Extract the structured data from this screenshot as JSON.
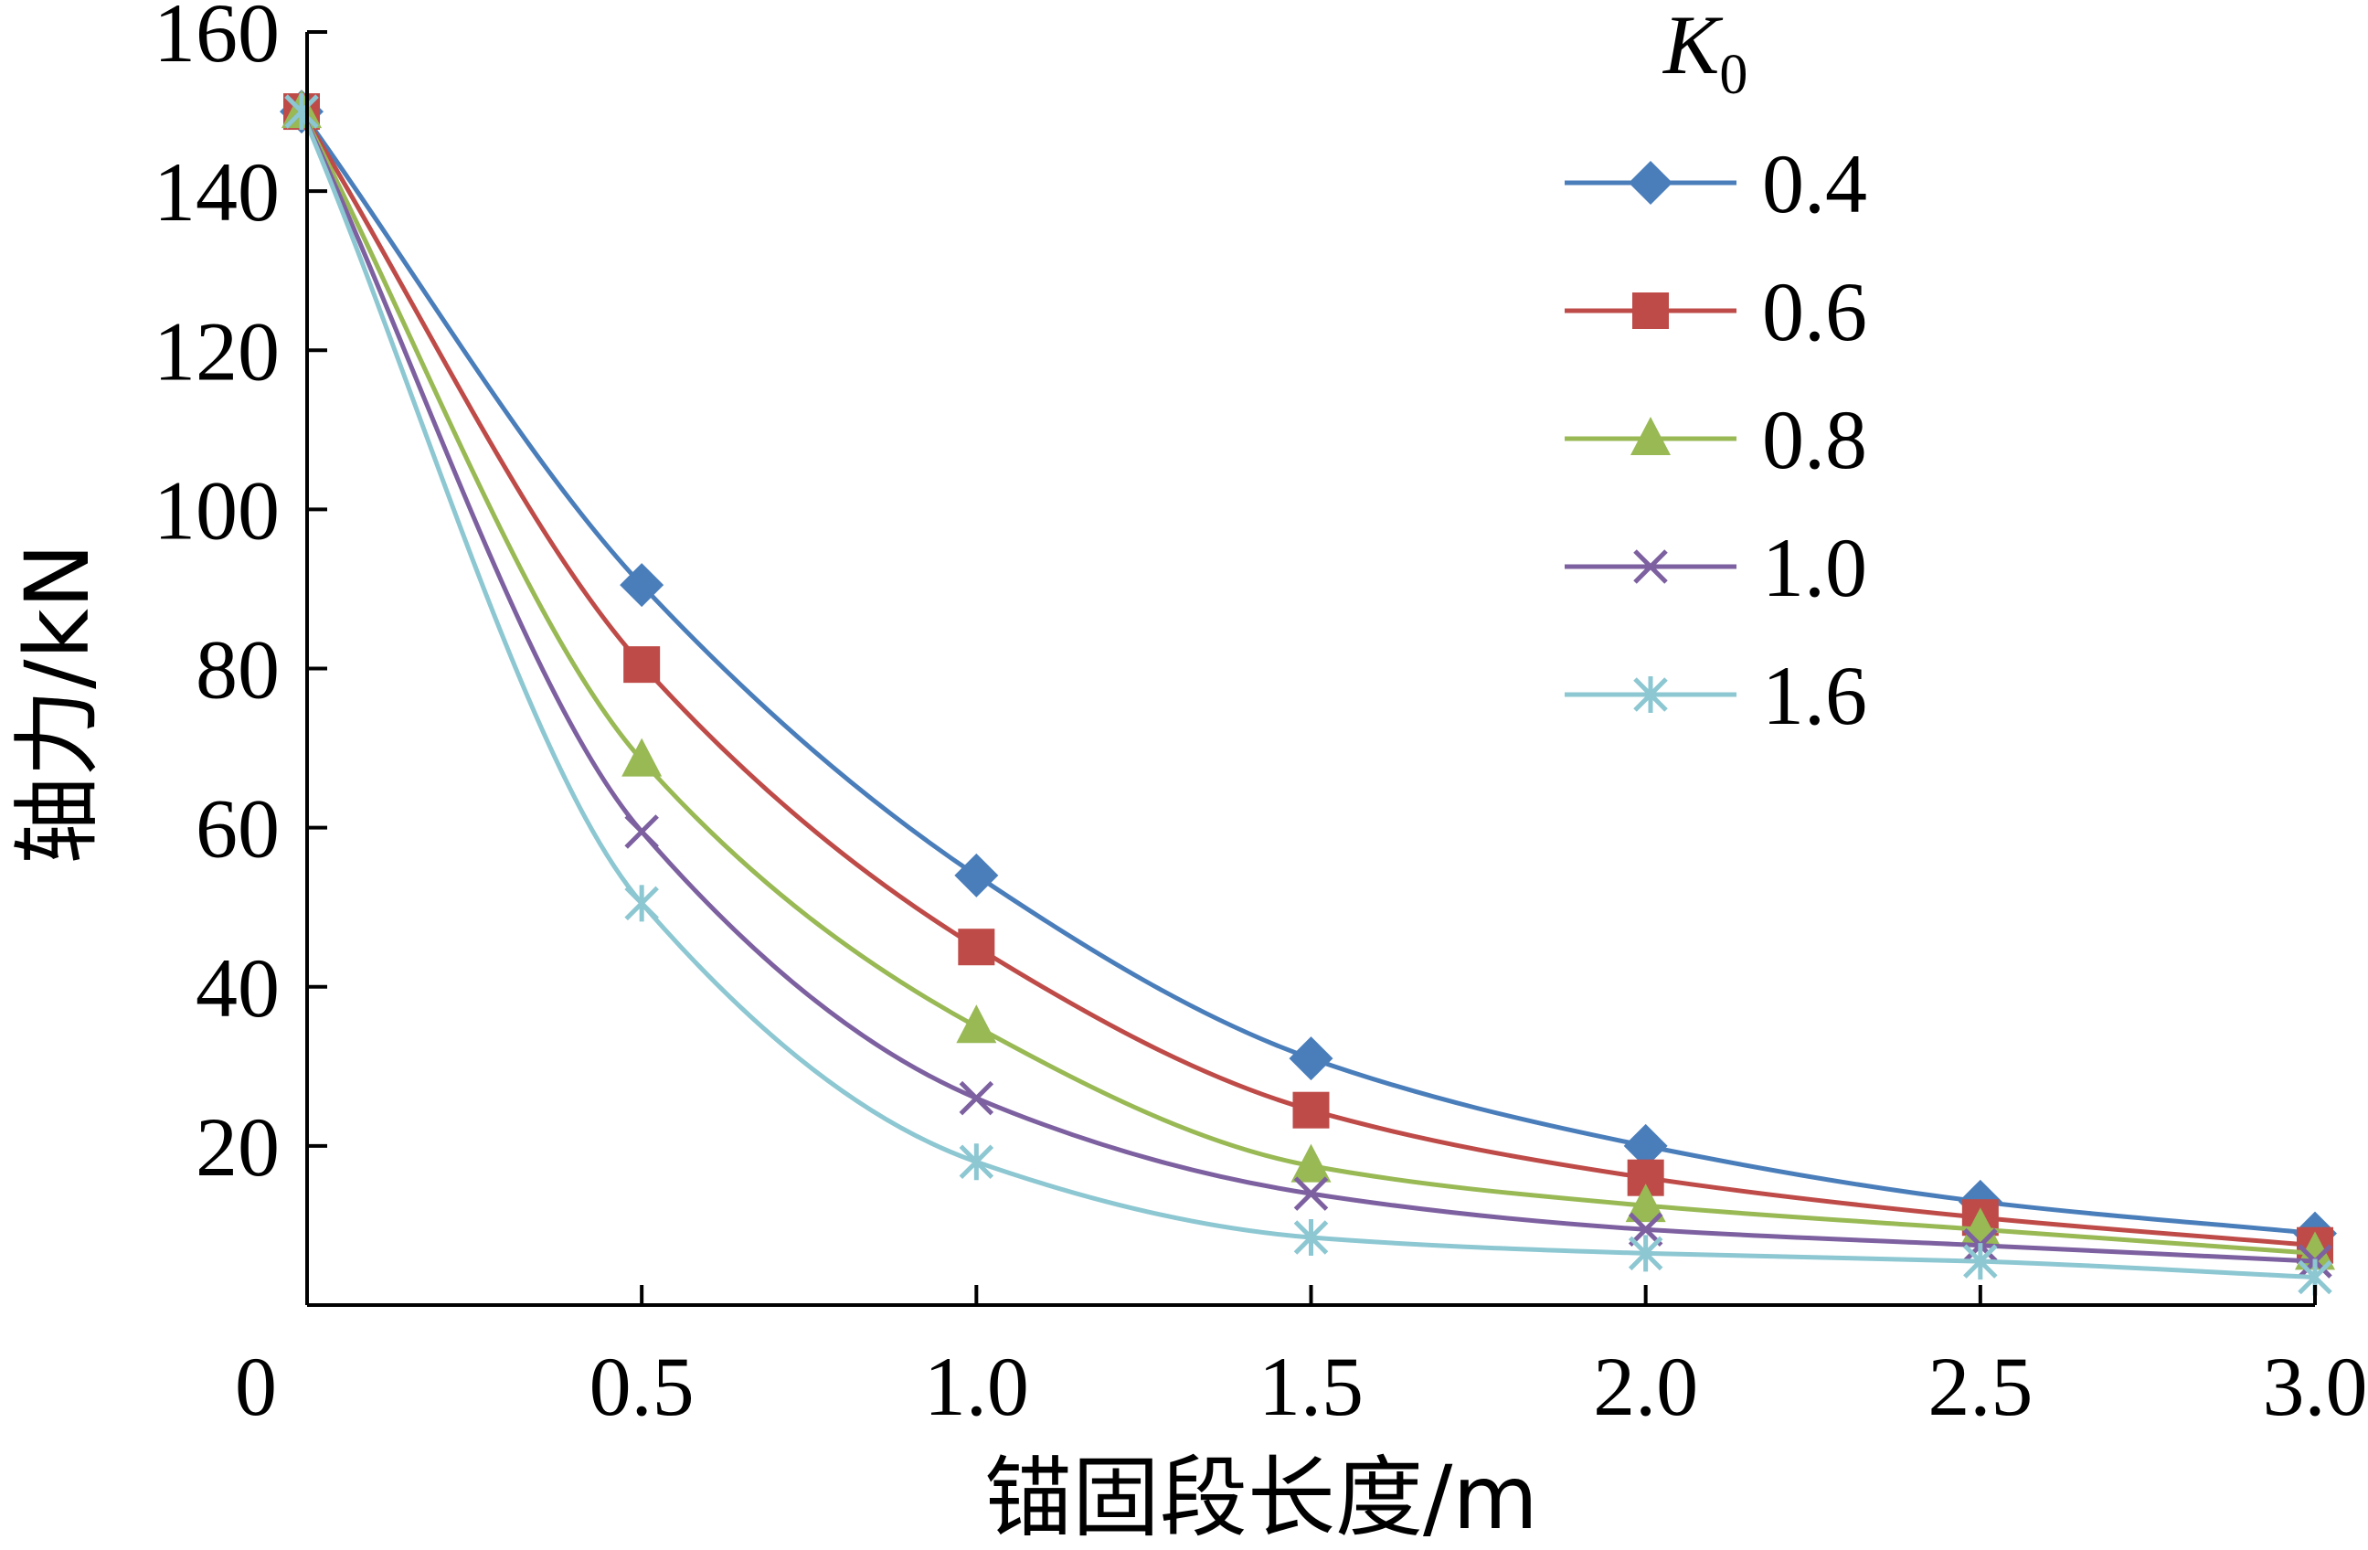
{
  "chart_data": {
    "type": "line",
    "xlabel": "锚固段长度/m",
    "ylabel": "轴力/kN",
    "xlim": [
      0,
      3.0
    ],
    "ylim": [
      0,
      160
    ],
    "x_ticks": [
      0.5,
      1.0,
      1.5,
      2.0,
      2.5,
      3.0
    ],
    "x_tick_labels": [
      "0.5",
      "1.0",
      "1.5",
      "2.0",
      "2.5",
      "3.0"
    ],
    "y_ticks": [
      20,
      40,
      60,
      80,
      100,
      120,
      140,
      160
    ],
    "y_tick_labels": [
      "20",
      "40",
      "60",
      "80",
      "100",
      "120",
      "140",
      "160"
    ],
    "origin_label": "0",
    "grid": false,
    "legend_placement": "top-right",
    "legend_title": {
      "main": "K",
      "sub": "0"
    },
    "x": [
      0,
      0.5,
      1.0,
      1.5,
      2.0,
      2.5,
      3.0
    ],
    "series": [
      {
        "name": "0.4",
        "color": "#4A7EBB",
        "marker": "diamond",
        "values": [
          150,
          90.5,
          54,
          31,
          20,
          13,
          9
        ]
      },
      {
        "name": "0.6",
        "color": "#BE4B48",
        "marker": "square",
        "values": [
          150,
          80.5,
          45,
          24.5,
          16,
          11,
          7.5
        ]
      },
      {
        "name": "0.8",
        "color": "#98B954",
        "marker": "triangle",
        "values": [
          150,
          68.5,
          35,
          17.5,
          12.5,
          9.5,
          6.5
        ]
      },
      {
        "name": "1.0",
        "color": "#7D60A0",
        "marker": "x",
        "values": [
          150,
          59.5,
          26,
          14,
          9.5,
          7.5,
          5.5
        ]
      },
      {
        "name": "1.6",
        "color": "#8CC7D2",
        "marker": "asterisk",
        "values": [
          150,
          50.5,
          18,
          8.5,
          6.5,
          5.5,
          3.5
        ]
      }
    ]
  }
}
